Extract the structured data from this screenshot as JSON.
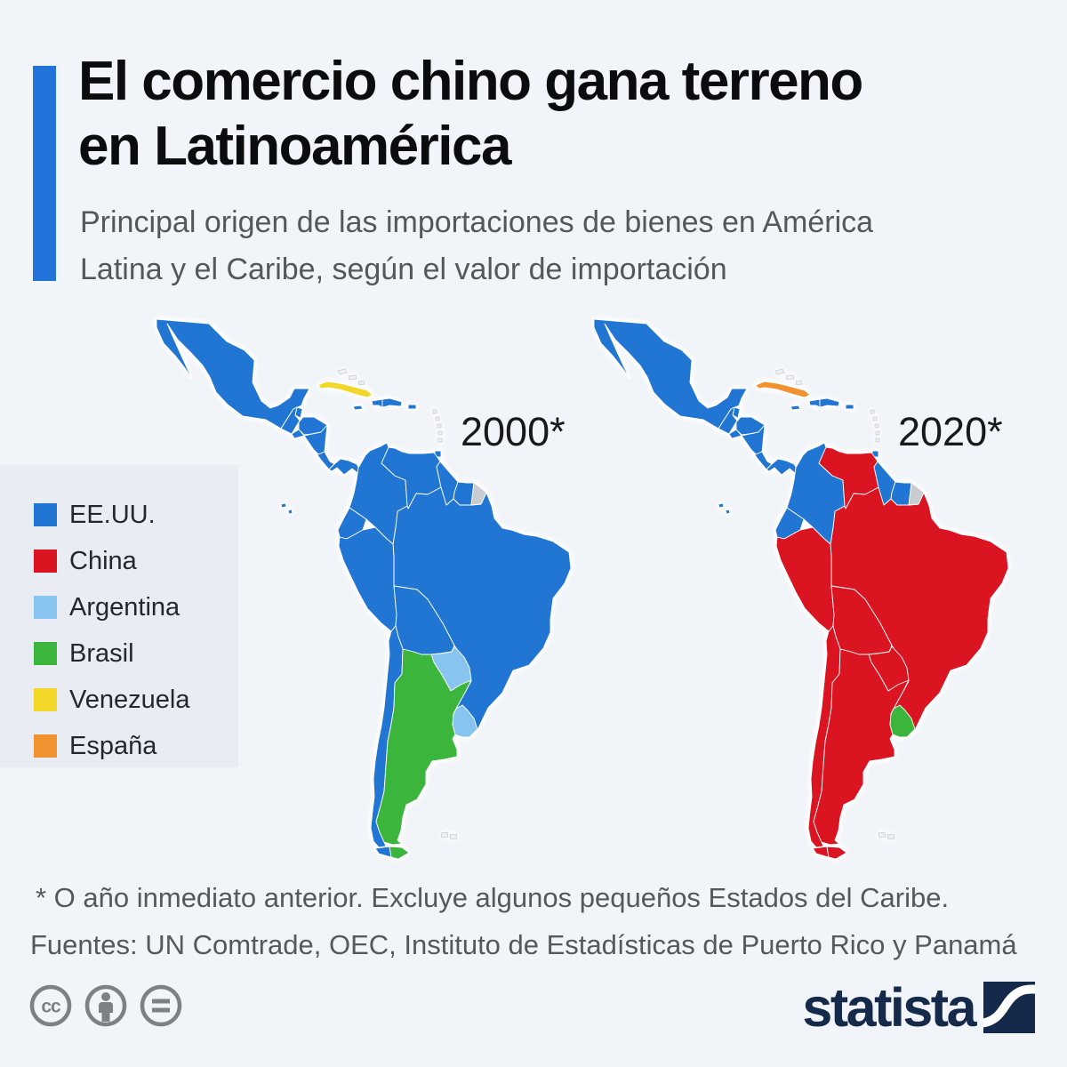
{
  "page": {
    "background": "#f1f4f8"
  },
  "header": {
    "accent_color": "#2374da",
    "title_line1": "El comercio chino gana terreno",
    "title_line2": "en Latinoamérica",
    "subtitle_line1": "Principal origen de las importaciones de bienes en América",
    "subtitle_line2": "Latina y el Caribe, según el valor de importación"
  },
  "chart_data": {
    "type": "choropleth",
    "title": "El comercio chino gana terreno en Latinoamérica",
    "subtitle": "Principal origen de las importaciones de bienes en América Latina y el Caribe, según el valor de importación",
    "legend_position": "left",
    "excluded_color": "#c9cdd2",
    "outline_color": "#edf0f4",
    "categories": [
      {
        "id": "us",
        "label": "EE.UU.",
        "color": "#2176d3"
      },
      {
        "id": "china",
        "label": "China",
        "color": "#da1420"
      },
      {
        "id": "argentina",
        "label": "Argentina",
        "color": "#87c4f0"
      },
      {
        "id": "brasil",
        "label": "Brasil",
        "color": "#3bb53c"
      },
      {
        "id": "venezuela",
        "label": "Venezuela",
        "color": "#f2d628"
      },
      {
        "id": "espana",
        "label": "España",
        "color": "#f0922f"
      }
    ],
    "maps": [
      {
        "year_label": "2000*",
        "assignments": {
          "mexico": "us",
          "belize": "us",
          "guatemala": "us",
          "honduras": "us",
          "elsalvador": "us",
          "nicaragua": "us",
          "costarica": "us",
          "panama": "us",
          "cuba": "venezuela",
          "jamaica": "us",
          "haiti": "us",
          "dominicana": "us",
          "puertorico": "us",
          "trinidad": "us",
          "bahamas": "outline",
          "antillas": "outline",
          "colombia": "us",
          "venezuela": "us",
          "guyana": "us",
          "suriname": "us",
          "guayana_francesa": "excluded",
          "ecuador": "us",
          "galapagos": "us",
          "peru": "us",
          "brazil": "us",
          "bolivia": "us",
          "paraguay": "argentina",
          "uruguay": "argentina",
          "argentina": "brasil",
          "chile": "us",
          "tdf_chile": "us",
          "tdf_argentina": "brasil",
          "falklands": "outline"
        }
      },
      {
        "year_label": "2020*",
        "assignments": {
          "mexico": "us",
          "belize": "us",
          "guatemala": "us",
          "honduras": "us",
          "elsalvador": "us",
          "nicaragua": "us",
          "costarica": "us",
          "panama": "us",
          "cuba": "espana",
          "jamaica": "us",
          "haiti": "us",
          "dominicana": "us",
          "puertorico": "us",
          "trinidad": "us",
          "bahamas": "outline",
          "antillas": "outline",
          "colombia": "us",
          "venezuela": "china",
          "guyana": "us",
          "suriname": "us",
          "guayana_francesa": "excluded",
          "ecuador": "us",
          "galapagos": "us",
          "peru": "china",
          "brazil": "china",
          "bolivia": "china",
          "paraguay": "china",
          "uruguay": "brasil",
          "argentina": "china",
          "chile": "china",
          "tdf_chile": "china",
          "tdf_argentina": "china",
          "falklands": "outline"
        }
      }
    ]
  },
  "footnote": "* O año inmediato anterior. Excluye algunos pequeños Estados del Caribe.",
  "sources": "Fuentes: UN Comtrade, OEC, Instituto de Estadísticas de Puerto Rico y Panamá",
  "footer": {
    "logo_text": "statista",
    "license_icons": [
      "cc",
      "attribution",
      "no-derivatives"
    ]
  }
}
